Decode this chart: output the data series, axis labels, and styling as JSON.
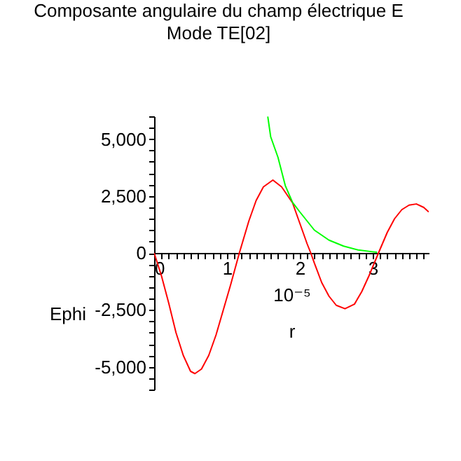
{
  "chart_data": {
    "type": "line",
    "title": "Composante angulaire du champ électrique E",
    "subtitle": "Mode TE[02]",
    "xlabel": "r",
    "ylabel": "Ephi",
    "annotations": [
      "10⁻⁵"
    ],
    "xlim": [
      0,
      3.77
    ],
    "ylim": [
      -6000,
      6000
    ],
    "xticks": [
      0,
      {
        "value": 0.1,
        "label": null
      },
      {
        "value": 0.2,
        "label": null
      },
      {
        "value": 0.3,
        "label": null
      },
      {
        "value": 0.4,
        "label": null
      },
      {
        "value": 0.5,
        "label": null
      },
      {
        "value": 0.6,
        "label": null
      },
      {
        "value": 0.7,
        "label": null
      },
      {
        "value": 0.8,
        "label": null
      },
      {
        "value": 0.9,
        "label": null
      },
      1,
      {
        "value": 1.1,
        "label": null
      },
      {
        "value": 1.2,
        "label": null
      },
      {
        "value": 1.3,
        "label": null
      },
      {
        "value": 1.4,
        "label": null
      },
      {
        "value": 1.5,
        "label": null
      },
      {
        "value": 1.6,
        "label": null
      },
      {
        "value": 1.7,
        "label": null
      },
      {
        "value": 1.8,
        "label": null
      },
      {
        "value": 1.9,
        "label": null
      },
      2,
      {
        "value": 2.1,
        "label": null
      },
      {
        "value": 2.2,
        "label": null
      },
      {
        "value": 2.3,
        "label": null
      },
      {
        "value": 2.4,
        "label": null
      },
      {
        "value": 2.5,
        "label": null
      },
      {
        "value": 2.6,
        "label": null
      },
      {
        "value": 2.7,
        "label": null
      },
      {
        "value": 2.8,
        "label": null
      },
      {
        "value": 2.9,
        "label": null
      },
      3,
      {
        "value": 3.1,
        "label": null
      },
      {
        "value": 3.2,
        "label": null
      },
      {
        "value": 3.3,
        "label": null
      },
      {
        "value": 3.4,
        "label": null
      },
      {
        "value": 3.5,
        "label": null
      },
      {
        "value": 3.6,
        "label": null
      },
      {
        "value": 3.7,
        "label": null
      }
    ],
    "yticks": [
      {
        "value": -6000,
        "label": null
      },
      {
        "value": -5500,
        "label": null
      },
      {
        "value": -5000,
        "label": "-5,000"
      },
      {
        "value": -4500,
        "label": null
      },
      {
        "value": -4000,
        "label": null
      },
      {
        "value": -3500,
        "label": null
      },
      {
        "value": -3000,
        "label": null
      },
      {
        "value": -2500,
        "label": "-2,500"
      },
      {
        "value": -2000,
        "label": null
      },
      {
        "value": -1500,
        "label": null
      },
      {
        "value": -1000,
        "label": null
      },
      {
        "value": -500,
        "label": null
      },
      0,
      {
        "value": 500,
        "label": null
      },
      {
        "value": 1000,
        "label": null
      },
      {
        "value": 1500,
        "label": null
      },
      {
        "value": 2000,
        "label": null
      },
      {
        "value": 2500,
        "label": "2,500"
      },
      {
        "value": 3000,
        "label": null
      },
      {
        "value": 3500,
        "label": null
      },
      {
        "value": 4000,
        "label": null
      },
      {
        "value": 4500,
        "label": null
      },
      {
        "value": 5000,
        "label": "5,000"
      },
      {
        "value": 5500,
        "label": null
      },
      {
        "value": 6000,
        "label": null
      }
    ],
    "grid": false,
    "legend": false,
    "marker": "none",
    "line_style": "solid",
    "series": [
      {
        "color": "#ff0000",
        "x": [
          0,
          0.1,
          0.2,
          0.3,
          0.4,
          0.5,
          0.56,
          0.65,
          0.75,
          0.85,
          0.95,
          1.05,
          1.17,
          1.3,
          1.4,
          1.5,
          1.63,
          1.75,
          1.9,
          2.0,
          2.1,
          2.15,
          2.2,
          2.3,
          2.4,
          2.5,
          2.62,
          2.75,
          2.85,
          2.95,
          3.08,
          3.2,
          3.3,
          3.4,
          3.5,
          3.6,
          3.7,
          3.77
        ],
        "values": [
          0,
          -1000,
          -2200,
          -3500,
          -4500,
          -5200,
          -5300,
          -5100,
          -4500,
          -3600,
          -2500,
          -1400,
          0,
          1400,
          2300,
          2900,
          3200,
          2900,
          2200,
          1300,
          400,
          0,
          -450,
          -1300,
          -1900,
          -2300,
          -2450,
          -2250,
          -1700,
          -1000,
          0,
          900,
          1500,
          1900,
          2100,
          2150,
          2000,
          1800
        ]
      },
      {
        "color": "#00ff00",
        "x": [
          1.56,
          1.6,
          1.7,
          1.8,
          1.9,
          2.0,
          2.2,
          2.4,
          2.6,
          2.8,
          3.0,
          3.06
        ],
        "values": [
          5990,
          5100,
          4200,
          2960,
          2220,
          1800,
          1000,
          560,
          300,
          130,
          50,
          30
        ]
      }
    ]
  }
}
